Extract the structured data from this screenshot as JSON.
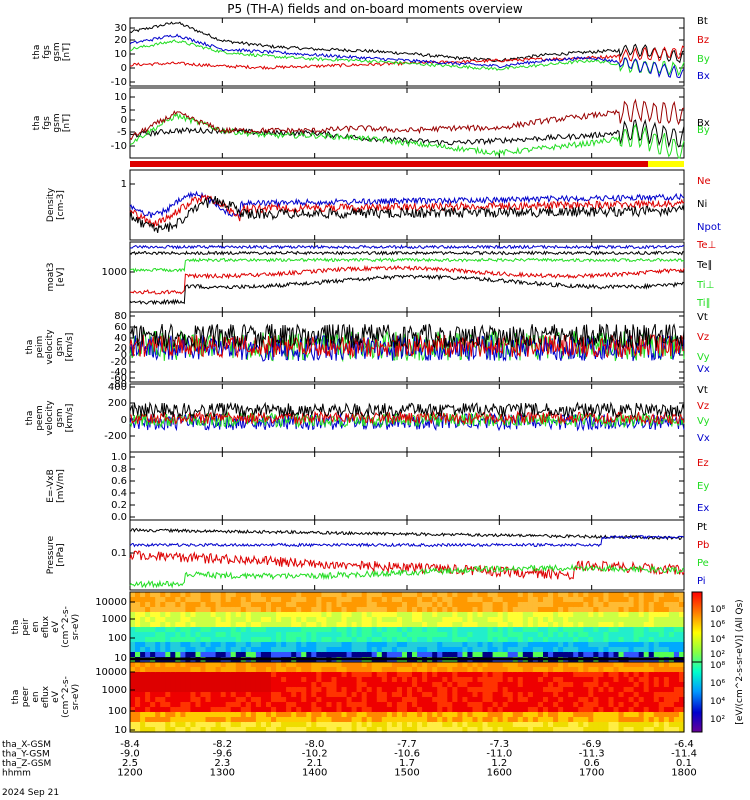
{
  "title": "P5 (TH-A) fields and on-board moments overview",
  "colors": {
    "black": "#000000",
    "red": "#dd0000",
    "green": "#22dd22",
    "blue": "#0000cc",
    "yellow": "#ffff00",
    "darkred": "#990000"
  },
  "panels": [
    {
      "id": "fgs_btot",
      "ylabel_lines": [
        "tha",
        "fgs",
        "gsm",
        "[nT]"
      ],
      "yticks": [
        "30",
        "20",
        "10",
        "0",
        "-10"
      ],
      "ylim": [
        -10,
        38
      ],
      "legend": [
        {
          "text": "Bt",
          "color": "#000000"
        },
        {
          "text": "Bz",
          "color": "#dd0000"
        },
        {
          "text": "By",
          "color": "#22dd22"
        },
        {
          "text": "Bx",
          "color": "#0000cc"
        }
      ]
    },
    {
      "id": "fgs_b",
      "ylabel_lines": [
        "tha",
        "fgs",
        "gsm",
        "[nT]"
      ],
      "yticks": [
        "10",
        "5",
        "0",
        "-5",
        "-10"
      ],
      "ylim": [
        -14,
        14
      ],
      "legend": [
        {
          "text": "Bx",
          "color": "#000000"
        },
        {
          "text": "By",
          "color": "#22dd22"
        },
        {
          "text": "Bz",
          "color": "#dd0000"
        }
      ]
    },
    {
      "id": "density",
      "ylabel_lines": [
        "Density",
        "[cm-3]"
      ],
      "yticks": [
        "1"
      ],
      "log": true,
      "legend": [
        {
          "text": "Ne",
          "color": "#dd0000"
        },
        {
          "text": "Ni",
          "color": "#000000"
        },
        {
          "text": "Npot",
          "color": "#0000cc"
        }
      ]
    },
    {
      "id": "temp",
      "ylabel_lines": [
        "moat3",
        "[eV]"
      ],
      "yticks": [
        "1000"
      ],
      "log": true,
      "legend": [
        {
          "text": "Te⊥",
          "color": "#dd0000"
        },
        {
          "text": "Te∥",
          "color": "#000000"
        },
        {
          "text": "Ti⊥",
          "color": "#22dd22"
        },
        {
          "text": "Ti∥",
          "color": "#22dd22"
        }
      ]
    },
    {
      "id": "peim_vel",
      "ylabel_lines": [
        "tha",
        "peim",
        "velocity",
        "gsm",
        "[km/s]"
      ],
      "yticks": [
        "80",
        "60",
        "40",
        "20",
        "0",
        "-20",
        "-40",
        "-60",
        "-80"
      ],
      "ylim": [
        -80,
        80
      ],
      "legend": [
        {
          "text": "Vt",
          "color": "#000000"
        },
        {
          "text": "Vz",
          "color": "#dd0000"
        },
        {
          "text": "Vy",
          "color": "#22dd22"
        },
        {
          "text": "Vx",
          "color": "#0000cc"
        }
      ]
    },
    {
      "id": "peem_vel",
      "ylabel_lines": [
        "tha",
        "peem",
        "velocity",
        "gsm",
        "[km/s]"
      ],
      "yticks": [
        "400",
        "200",
        "0",
        "-200"
      ],
      "ylim": [
        -300,
        420
      ],
      "legend": [
        {
          "text": "Vt",
          "color": "#000000"
        },
        {
          "text": "Vz",
          "color": "#dd0000"
        },
        {
          "text": "Vy",
          "color": "#22dd22"
        },
        {
          "text": "Vx",
          "color": "#0000cc"
        }
      ]
    },
    {
      "id": "efield",
      "ylabel_lines": [
        "E=-VxB",
        "[mV/m]"
      ],
      "yticks": [
        "1.0",
        "0.8",
        "0.6",
        "0.4",
        "0.2",
        "0.0"
      ],
      "ylim": [
        0,
        1
      ],
      "legend": [
        {
          "text": "Ez",
          "color": "#dd0000"
        },
        {
          "text": "Ey",
          "color": "#22dd22"
        },
        {
          "text": "Ex",
          "color": "#0000cc"
        }
      ]
    },
    {
      "id": "pressure",
      "ylabel_lines": [
        "Pressure",
        "[nPa]"
      ],
      "yticks": [
        "0.1"
      ],
      "log": true,
      "legend": [
        {
          "text": "Pt",
          "color": "#000000"
        },
        {
          "text": "Pb",
          "color": "#dd0000"
        },
        {
          "text": "Pe",
          "color": "#22dd22"
        },
        {
          "text": "Pi",
          "color": "#0000cc"
        }
      ]
    },
    {
      "id": "peir",
      "ylabel_lines": [
        "tha",
        "peir",
        "en",
        "eflux",
        "eV",
        "(cm^2-s-",
        "sr-eV)"
      ],
      "yticks": [
        "10000",
        "1000",
        "100",
        "10"
      ],
      "log": true,
      "legend": []
    },
    {
      "id": "peer",
      "ylabel_lines": [
        "tha",
        "peer",
        "en",
        "eflux",
        "eV",
        "(cm^2-s-",
        "sr-eV)"
      ],
      "yticks": [
        "10000",
        "1000",
        "100",
        "10"
      ],
      "log": true,
      "legend": []
    }
  ],
  "colorbar": {
    "label": "[eV/(cm^2-s-sr-eV)] (All Qs)",
    "ticks_top": [
      "10⁸",
      "10⁶",
      "10⁴",
      "10²"
    ],
    "ticks_bottom": [
      "10⁸",
      "10⁶",
      "10⁴",
      "10²"
    ]
  },
  "xaxis": {
    "rows": [
      {
        "label": "tha_X-GSM",
        "values": [
          "-8.4",
          "-8.2",
          "-8.0",
          "-7.7",
          "-7.3",
          "-6.9",
          "-6.4"
        ]
      },
      {
        "label": "tha_Y-GSM",
        "values": [
          "-9.0",
          "-9.6",
          "-10.2",
          "-10.6",
          "-11.0",
          "-11.3",
          "-11.4"
        ]
      },
      {
        "label": "tha_Z-GSM",
        "values": [
          "2.5",
          "2.3",
          "2.1",
          "1.7",
          "1.2",
          "0.6",
          "0.1"
        ]
      },
      {
        "label": "hhmm",
        "values": [
          "1200",
          "1300",
          "1400",
          "1500",
          "1600",
          "1700",
          "1800"
        ]
      }
    ],
    "date": "2024 Sep 21"
  },
  "chart_data": {
    "type": "line",
    "x_hours": [
      12,
      12.5,
      13,
      13.5,
      14,
      14.5,
      15,
      15.5,
      16,
      16.5,
      17,
      17.5,
      18
    ],
    "series": [
      {
        "panel": "fgs_btot",
        "name": "Bt",
        "values": [
          28,
          35,
          22,
          18,
          16,
          15,
          13,
          10,
          8,
          12,
          14,
          16,
          10
        ]
      },
      {
        "panel": "fgs_btot",
        "name": "Bz",
        "values": [
          5,
          6,
          4,
          3,
          4,
          5,
          6,
          7,
          8,
          9,
          10,
          12,
          14
        ]
      },
      {
        "panel": "fgs_btot",
        "name": "By",
        "values": [
          16,
          22,
          14,
          11,
          9,
          8,
          6,
          4,
          2,
          5,
          8,
          4,
          2
        ]
      },
      {
        "panel": "fgs_btot",
        "name": "Bx",
        "values": [
          20,
          26,
          16,
          14,
          12,
          10,
          8,
          6,
          4,
          8,
          10,
          5,
          -2
        ]
      },
      {
        "panel": "fgs_b",
        "name": "Bx",
        "values": [
          -5,
          -3,
          -3,
          -4,
          -4,
          -6,
          -7,
          -8,
          -7,
          -6,
          -5,
          -3,
          -6
        ]
      },
      {
        "panel": "fgs_b",
        "name": "By",
        "values": [
          -8,
          3,
          -3,
          -5,
          -5,
          -6,
          -8,
          -10,
          -12,
          -10,
          -8,
          -5,
          -12
        ]
      },
      {
        "panel": "fgs_b",
        "name": "Bz",
        "values": [
          -6,
          4,
          -3,
          -3,
          -3,
          -2,
          -3,
          -2,
          -2,
          1,
          3,
          5,
          3
        ]
      }
    ]
  }
}
